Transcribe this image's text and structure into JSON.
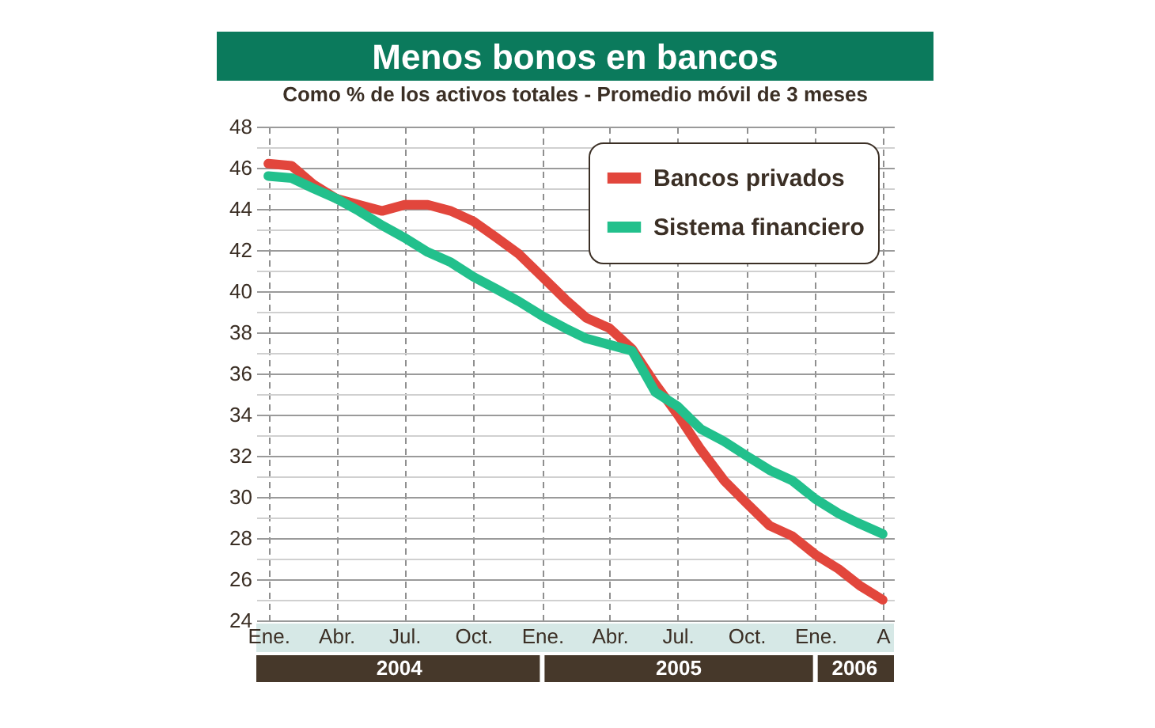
{
  "chart_data": {
    "type": "line",
    "title": "Menos bonos en bancos",
    "subtitle": "Como % de los activos totales - Promedio móvil de 3 meses",
    "x": [
      "2004-01",
      "2004-02",
      "2004-03",
      "2004-04",
      "2004-05",
      "2004-06",
      "2004-07",
      "2004-08",
      "2004-09",
      "2004-10",
      "2004-11",
      "2004-12",
      "2005-01",
      "2005-02",
      "2005-03",
      "2005-04",
      "2005-05",
      "2005-06",
      "2005-07",
      "2005-08",
      "2005-09",
      "2005-10",
      "2005-11",
      "2005-12",
      "2006-01",
      "2006-02",
      "2006-03",
      "2006-04"
    ],
    "series": [
      {
        "name": "Bancos privados",
        "color": "#e2463c",
        "values": [
          46.2,
          46.1,
          45.2,
          44.5,
          44.2,
          43.9,
          44.2,
          44.2,
          43.9,
          43.4,
          42.6,
          41.8,
          40.7,
          39.6,
          38.7,
          38.2,
          37.2,
          35.5,
          34.0,
          32.3,
          30.8,
          29.7,
          28.6,
          28.1,
          27.2,
          26.5,
          25.7,
          25.0
        ]
      },
      {
        "name": "Sistema financiero",
        "color": "#22c08c",
        "values": [
          45.6,
          45.5,
          45.0,
          44.5,
          43.9,
          43.2,
          42.6,
          41.9,
          41.4,
          40.7,
          40.1,
          39.5,
          38.8,
          38.2,
          37.7,
          37.4,
          37.1,
          35.1,
          34.4,
          33.3,
          32.7,
          32.0,
          31.3,
          30.8,
          29.9,
          29.2,
          28.7,
          28.2
        ]
      }
    ],
    "xlim": [
      "2003-12-16",
      "2006-04-16"
    ],
    "xticks": [
      {
        "value": "2004-01",
        "label": "Ene."
      },
      {
        "value": "2004-04",
        "label": "Abr."
      },
      {
        "value": "2004-07",
        "label": "Jul."
      },
      {
        "value": "2004-10",
        "label": "Oct."
      },
      {
        "value": "2005-01",
        "label": "Ene."
      },
      {
        "value": "2005-04",
        "label": "Abr."
      },
      {
        "value": "2005-07",
        "label": "Jul."
      },
      {
        "value": "2005-10",
        "label": "Oct."
      },
      {
        "value": "2006-01",
        "label": "Ene."
      },
      {
        "value": "2006-04",
        "label": "A"
      }
    ],
    "ylim": [
      24,
      48
    ],
    "yticks": [
      24,
      {
        "value": 25,
        "label": null
      },
      26,
      {
        "value": 27,
        "label": null
      },
      28,
      {
        "value": 29,
        "label": null
      },
      30,
      {
        "value": 31,
        "label": null
      },
      32,
      {
        "value": 33,
        "label": null
      },
      34,
      {
        "value": 35,
        "label": null
      },
      36,
      {
        "value": 37,
        "label": null
      },
      38,
      {
        "value": 39,
        "label": null
      },
      40,
      {
        "value": 41,
        "label": null
      },
      42,
      {
        "value": 43,
        "label": null
      },
      44,
      {
        "value": 45,
        "label": null
      },
      46,
      {
        "value": 47,
        "label": null
      },
      48
    ],
    "annotations": [
      "2004",
      "2005",
      "2006"
    ],
    "grid": true,
    "legend": "top right"
  }
}
